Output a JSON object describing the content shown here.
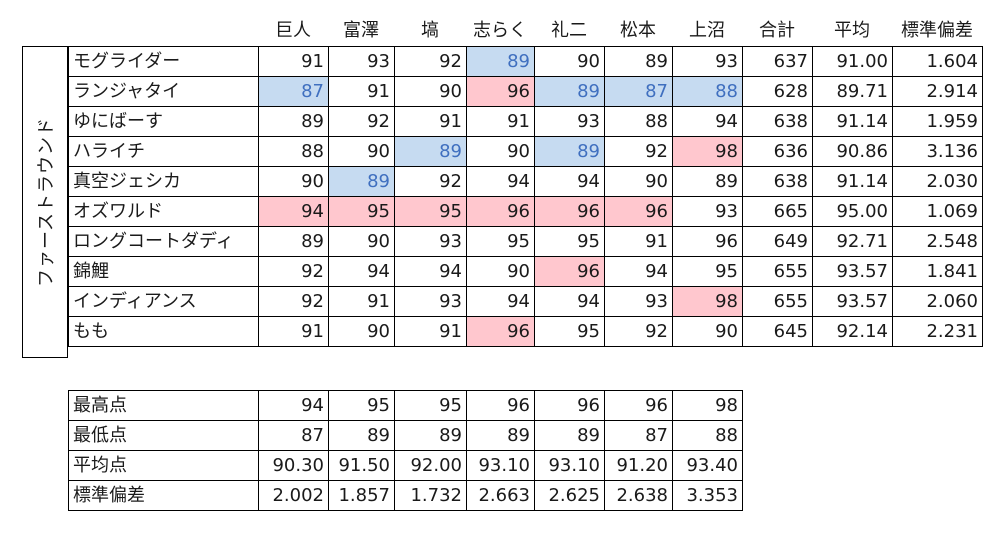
{
  "columns": [
    "巨人",
    "富澤",
    "塙",
    "志らく",
    "礼二",
    "松本",
    "上沼",
    "合計",
    "平均",
    "標準偏差"
  ],
  "group_label": "ファーストラウンド",
  "rows": [
    {
      "name": "モグライダー",
      "scores": [
        "91",
        "93",
        "92",
        "89",
        "90",
        "89",
        "93"
      ],
      "marks": [
        "",
        "",
        "",
        "lo",
        "",
        "",
        ""
      ],
      "total": "637",
      "avg": "91.00",
      "sd": "1.604"
    },
    {
      "name": "ランジャタイ",
      "scores": [
        "87",
        "91",
        "90",
        "96",
        "89",
        "87",
        "88"
      ],
      "marks": [
        "lo",
        "",
        "",
        "hi",
        "lo",
        "lo",
        "lo"
      ],
      "total": "628",
      "avg": "89.71",
      "sd": "2.914"
    },
    {
      "name": "ゆにばーす",
      "scores": [
        "89",
        "92",
        "91",
        "91",
        "93",
        "88",
        "94"
      ],
      "marks": [
        "",
        "",
        "",
        "",
        "",
        "",
        ""
      ],
      "total": "638",
      "avg": "91.14",
      "sd": "1.959"
    },
    {
      "name": "ハライチ",
      "scores": [
        "88",
        "90",
        "89",
        "90",
        "89",
        "92",
        "98"
      ],
      "marks": [
        "",
        "",
        "lo",
        "",
        "lo",
        "",
        "hi"
      ],
      "total": "636",
      "avg": "90.86",
      "sd": "3.136"
    },
    {
      "name": "真空ジェシカ",
      "scores": [
        "90",
        "89",
        "92",
        "94",
        "94",
        "90",
        "89"
      ],
      "marks": [
        "",
        "lo",
        "",
        "",
        "",
        "",
        ""
      ],
      "total": "638",
      "avg": "91.14",
      "sd": "2.030"
    },
    {
      "name": "オズワルド",
      "scores": [
        "94",
        "95",
        "95",
        "96",
        "96",
        "96",
        "93"
      ],
      "marks": [
        "hi",
        "hi",
        "hi",
        "hi",
        "hi",
        "hi",
        ""
      ],
      "total": "665",
      "avg": "95.00",
      "sd": "1.069"
    },
    {
      "name": "ロングコートダディ",
      "scores": [
        "89",
        "90",
        "93",
        "95",
        "95",
        "91",
        "96"
      ],
      "marks": [
        "",
        "",
        "",
        "",
        "",
        "",
        ""
      ],
      "total": "649",
      "avg": "92.71",
      "sd": "2.548"
    },
    {
      "name": "錦鯉",
      "scores": [
        "92",
        "94",
        "94",
        "90",
        "96",
        "94",
        "95"
      ],
      "marks": [
        "",
        "",
        "",
        "",
        "hi",
        "",
        ""
      ],
      "total": "655",
      "avg": "93.57",
      "sd": "1.841"
    },
    {
      "name": "インディアンス",
      "scores": [
        "92",
        "91",
        "93",
        "94",
        "94",
        "93",
        "98"
      ],
      "marks": [
        "",
        "",
        "",
        "",
        "",
        "",
        "hi"
      ],
      "total": "655",
      "avg": "93.57",
      "sd": "2.060"
    },
    {
      "name": "もも",
      "scores": [
        "91",
        "90",
        "91",
        "96",
        "95",
        "92",
        "90"
      ],
      "marks": [
        "",
        "",
        "",
        "hi",
        "",
        "",
        ""
      ],
      "total": "645",
      "avg": "92.14",
      "sd": "2.231"
    }
  ],
  "stats": [
    {
      "label": "最高点",
      "values": [
        "94",
        "95",
        "95",
        "96",
        "96",
        "96",
        "98"
      ]
    },
    {
      "label": "最低点",
      "values": [
        "87",
        "89",
        "89",
        "89",
        "89",
        "87",
        "88"
      ]
    },
    {
      "label": "平均点",
      "values": [
        "90.30",
        "91.50",
        "92.00",
        "93.10",
        "93.10",
        "91.20",
        "93.40"
      ]
    },
    {
      "label": "標準偏差",
      "values": [
        "2.002",
        "1.857",
        "1.732",
        "2.663",
        "2.625",
        "2.638",
        "3.353"
      ]
    }
  ],
  "colors": {
    "high": "#ffc7ce",
    "low": "#c6dbf1",
    "low_text": "#3f6fbf"
  }
}
